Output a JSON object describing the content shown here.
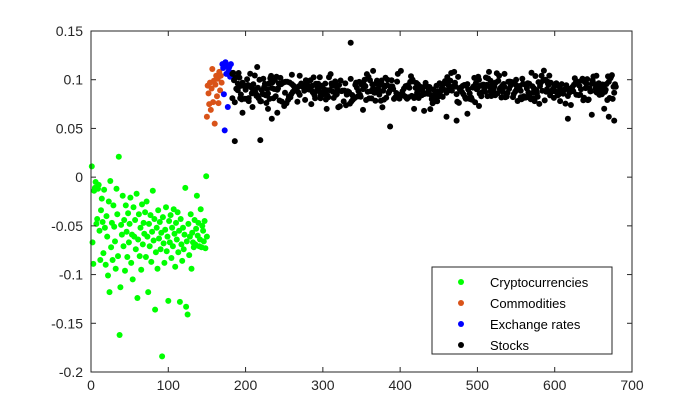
{
  "chart_data": {
    "type": "scatter",
    "title": "",
    "xlabel": "",
    "ylabel": "",
    "xlim": [
      0,
      700
    ],
    "ylim": [
      -0.2,
      0.15
    ],
    "xticks": [
      0,
      100,
      200,
      300,
      400,
      500,
      600,
      700
    ],
    "yticks": [
      -0.2,
      -0.15,
      -0.1,
      -0.05,
      0,
      0.05,
      0.1,
      0.15
    ],
    "xtick_labels": [
      "0",
      "100",
      "200",
      "300",
      "400",
      "500",
      "600",
      "700"
    ],
    "ytick_labels": [
      "-0.2",
      "-0.15",
      "-0.1",
      "-0.05",
      "0",
      "0.05",
      "0.1",
      "0.15"
    ],
    "grid": false,
    "legend_position": "bottom-right",
    "series": [
      {
        "name": "Cryptocurrencies",
        "color": "#00ff00",
        "points": [
          [
            1,
            0.011
          ],
          [
            2,
            -0.067
          ],
          [
            3,
            -0.089
          ],
          [
            4,
            -0.014
          ],
          [
            5,
            -0.011
          ],
          [
            6,
            -0.005
          ],
          [
            7,
            -0.048
          ],
          [
            8,
            -0.043
          ],
          [
            9,
            -0.012
          ],
          [
            10,
            -0.008
          ],
          [
            11,
            -0.055
          ],
          [
            12,
            -0.085
          ],
          [
            13,
            -0.034
          ],
          [
            14,
            -0.022
          ],
          [
            15,
            -0.046
          ],
          [
            16,
            -0.078
          ],
          [
            17,
            -0.013
          ],
          [
            18,
            -0.052
          ],
          [
            19,
            -0.09
          ],
          [
            20,
            -0.04
          ],
          [
            21,
            -0.061
          ],
          [
            22,
            -0.101
          ],
          [
            23,
            -0.025
          ],
          [
            24,
            -0.118
          ],
          [
            25,
            -0.004
          ],
          [
            26,
            -0.072
          ],
          [
            27,
            -0.047
          ],
          [
            28,
            -0.085
          ],
          [
            29,
            -0.029
          ],
          [
            30,
            -0.051
          ],
          [
            31,
            -0.066
          ],
          [
            32,
            -0.094
          ],
          [
            33,
            -0.012
          ],
          [
            34,
            -0.038
          ],
          [
            35,
            -0.081
          ],
          [
            36,
            0.021
          ],
          [
            37,
            -0.162
          ],
          [
            38,
            -0.113
          ],
          [
            39,
            -0.049
          ],
          [
            40,
            -0.059
          ],
          [
            41,
            -0.019
          ],
          [
            42,
            -0.071
          ],
          [
            43,
            -0.044
          ],
          [
            44,
            -0.096
          ],
          [
            45,
            -0.029
          ],
          [
            46,
            -0.056
          ],
          [
            47,
            -0.082
          ],
          [
            48,
            -0.037
          ],
          [
            49,
            -0.067
          ],
          [
            50,
            -0.048
          ],
          [
            51,
            -0.021
          ],
          [
            52,
            -0.088
          ],
          [
            53,
            -0.059
          ],
          [
            54,
            -0.105
          ],
          [
            55,
            -0.031
          ],
          [
            56,
            -0.061
          ],
          [
            57,
            -0.044
          ],
          [
            58,
            -0.074
          ],
          [
            59,
            -0.017
          ],
          [
            60,
            -0.124
          ],
          [
            61,
            -0.064
          ],
          [
            62,
            -0.038
          ],
          [
            63,
            -0.081
          ],
          [
            64,
            -0.052
          ],
          [
            65,
            -0.095
          ],
          [
            66,
            -0.028
          ],
          [
            67,
            -0.069
          ],
          [
            68,
            -0.047
          ],
          [
            69,
            -0.058
          ],
          [
            70,
            -0.036
          ],
          [
            71,
            -0.082
          ],
          [
            72,
            -0.025
          ],
          [
            73,
            -0.061
          ],
          [
            74,
            -0.118
          ],
          [
            75,
            -0.048
          ],
          [
            76,
            -0.071
          ],
          [
            77,
            -0.039
          ],
          [
            78,
            -0.087
          ],
          [
            79,
            -0.056
          ],
          [
            80,
            -0.014
          ],
          [
            81,
            -0.065
          ],
          [
            82,
            -0.043
          ],
          [
            83,
            -0.136
          ],
          [
            84,
            -0.077
          ],
          [
            85,
            -0.052
          ],
          [
            86,
            -0.094
          ],
          [
            87,
            -0.034
          ],
          [
            88,
            -0.063
          ],
          [
            89,
            -0.046
          ],
          [
            90,
            -0.074
          ],
          [
            91,
            -0.057
          ],
          [
            92,
            -0.184
          ],
          [
            93,
            -0.041
          ],
          [
            94,
            -0.068
          ],
          [
            95,
            -0.088
          ],
          [
            96,
            -0.054
          ],
          [
            97,
            -0.031
          ],
          [
            98,
            -0.076
          ],
          [
            99,
            -0.061
          ],
          [
            100,
            -0.127
          ],
          [
            101,
            -0.045
          ],
          [
            102,
            -0.067
          ],
          [
            103,
            -0.039
          ],
          [
            104,
            -0.083
          ],
          [
            105,
            -0.052
          ],
          [
            106,
            -0.071
          ],
          [
            107,
            -0.033
          ],
          [
            108,
            -0.058
          ],
          [
            109,
            -0.092
          ],
          [
            110,
            -0.047
          ],
          [
            111,
            -0.064
          ],
          [
            112,
            -0.036
          ],
          [
            113,
            -0.077
          ],
          [
            114,
            -0.055
          ],
          [
            115,
            -0.128
          ],
          [
            116,
            -0.043
          ],
          [
            117,
            -0.069
          ],
          [
            118,
            -0.086
          ],
          [
            119,
            -0.052
          ],
          [
            120,
            -0.074
          ],
          [
            121,
            -0.059
          ],
          [
            122,
            -0.011
          ],
          [
            123,
            -0.133
          ],
          [
            124,
            -0.066
          ],
          [
            125,
            -0.141
          ],
          [
            126,
            -0.048
          ],
          [
            127,
            -0.08
          ],
          [
            128,
            -0.061
          ],
          [
            129,
            -0.038
          ],
          [
            130,
            -0.094
          ],
          [
            131,
            -0.057
          ],
          [
            132,
            -0.067
          ],
          [
            133,
            -0.072
          ],
          [
            134,
            -0.044
          ],
          [
            135,
            -0.069
          ],
          [
            136,
            -0.053
          ],
          [
            137,
            -0.019
          ],
          [
            138,
            -0.06
          ],
          [
            139,
            -0.047
          ],
          [
            140,
            -0.071
          ],
          [
            141,
            -0.064
          ],
          [
            142,
            -0.033
          ],
          [
            143,
            -0.072
          ],
          [
            144,
            -0.05
          ],
          [
            145,
            -0.055
          ],
          [
            146,
            -0.066
          ],
          [
            147,
            -0.045
          ],
          [
            148,
            -0.073
          ],
          [
            149,
            0.001
          ],
          [
            150,
            -0.061
          ]
        ]
      },
      {
        "name": "Commodities",
        "color": "#d95319",
        "points": [
          [
            150,
            0.062
          ],
          [
            151,
            0.094
          ],
          [
            152,
            0.086
          ],
          [
            153,
            0.075
          ],
          [
            154,
            0.097
          ],
          [
            155,
            0.069
          ],
          [
            156,
            0.091
          ],
          [
            157,
            0.111
          ],
          [
            158,
            0.077
          ],
          [
            159,
            0.099
          ],
          [
            160,
            0.055
          ],
          [
            161,
            0.095
          ],
          [
            162,
            0.104
          ],
          [
            163,
            0.083
          ],
          [
            164,
            0.101
          ],
          [
            165,
            0.076
          ],
          [
            166,
            0.108
          ],
          [
            167,
            0.089
          ],
          [
            168,
            0.104
          ],
          [
            169,
            0.097
          ]
        ]
      },
      {
        "name": "Exchange rates",
        "color": "#0000ff",
        "points": [
          [
            170,
            0.116
          ],
          [
            171,
            0.112
          ],
          [
            172,
            0.085
          ],
          [
            173,
            0.048
          ],
          [
            174,
            0.118
          ],
          [
            175,
            0.106
          ],
          [
            176,
            0.114
          ],
          [
            177,
            0.072
          ],
          [
            178,
            0.109
          ],
          [
            179,
            0.113
          ],
          [
            180,
            0.103
          ],
          [
            181,
            0.116
          ],
          [
            182,
            0.107
          ]
        ]
      }
    ],
    "stocks": {
      "name": "Stocks",
      "color": "#000000",
      "x_start": 183,
      "x_end": 679,
      "y_mean": 0.09,
      "y_spread": 0.011,
      "outliers": [
        [
          183,
          0.106
        ],
        [
          186,
          0.037
        ],
        [
          190,
          0.096
        ],
        [
          193,
          0.081
        ],
        [
          196,
          0.066
        ],
        [
          200,
          0.093
        ],
        [
          204,
          0.078
        ],
        [
          209,
          0.072
        ],
        [
          215,
          0.113
        ],
        [
          219,
          0.038
        ],
        [
          223,
          0.101
        ],
        [
          229,
          0.07
        ],
        [
          234,
          0.06
        ],
        [
          241,
          0.066
        ],
        [
          250,
          0.073
        ],
        [
          260,
          0.105
        ],
        [
          270,
          0.104
        ],
        [
          285,
          0.075
        ],
        [
          297,
          0.081
        ],
        [
          305,
          0.07
        ],
        [
          336,
          0.138
        ],
        [
          352,
          0.069
        ],
        [
          365,
          0.109
        ],
        [
          377,
          0.095
        ],
        [
          387,
          0.052
        ],
        [
          401,
          0.109
        ],
        [
          418,
          0.07
        ],
        [
          431,
          0.068
        ],
        [
          446,
          0.078
        ],
        [
          460,
          0.062
        ],
        [
          473,
          0.058
        ],
        [
          487,
          0.065
        ],
        [
          502,
          0.073
        ],
        [
          517,
          0.099
        ],
        [
          535,
          0.106
        ],
        [
          550,
          0.1
        ],
        [
          556,
          0.082
        ],
        [
          574,
          0.078
        ],
        [
          591,
          0.098
        ],
        [
          607,
          0.078
        ],
        [
          617,
          0.06
        ],
        [
          621,
          0.074
        ],
        [
          637,
          0.079
        ],
        [
          648,
          0.064
        ],
        [
          654,
          0.104
        ],
        [
          665,
          0.088
        ],
        [
          670,
          0.062
        ],
        [
          677,
          0.058
        ]
      ]
    }
  }
}
